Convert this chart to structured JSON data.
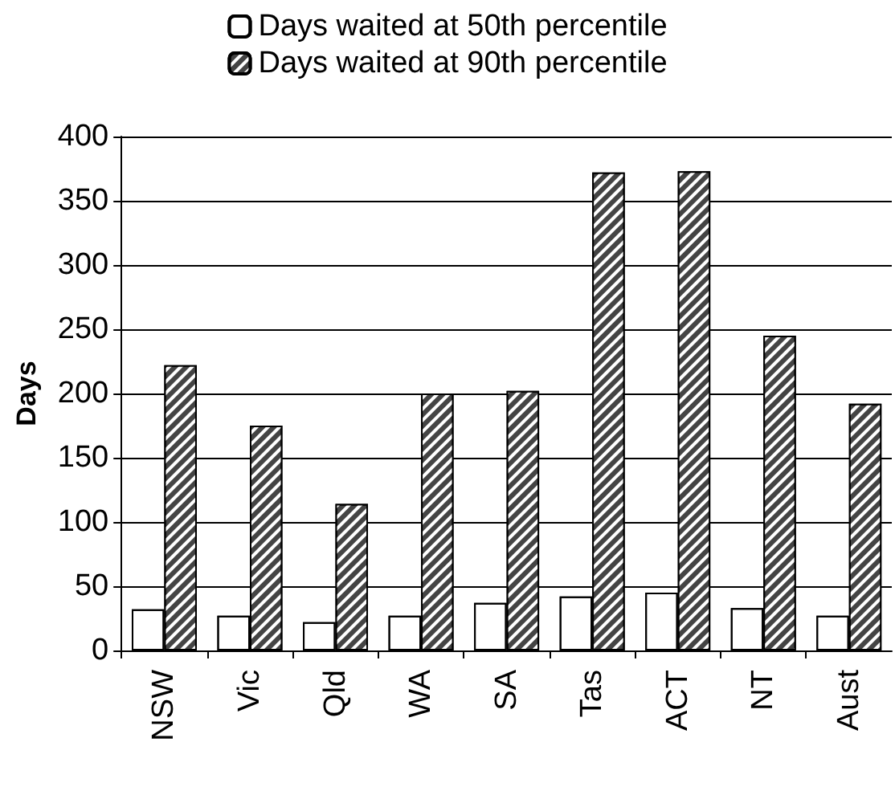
{
  "chart_data": {
    "type": "bar",
    "ylabel": "Days",
    "categories": [
      "NSW",
      "Vic",
      "Qld",
      "WA",
      "SA",
      "Tas",
      "ACT",
      "NT",
      "Aust"
    ],
    "series": [
      {
        "name": "Days waited at 50th percentile",
        "color": "#ffffff",
        "values": [
          32,
          27,
          22,
          27,
          37,
          42,
          45,
          33,
          27
        ]
      },
      {
        "name": "Days waited at 90th percentile",
        "color": "#444444",
        "values": [
          222,
          175,
          114,
          200,
          202,
          372,
          373,
          245,
          192
        ]
      }
    ],
    "ylim": [
      0,
      400
    ],
    "yticks": [
      0,
      50,
      100,
      150,
      200,
      250,
      300,
      350,
      400
    ],
    "grid": "y",
    "legend": "top"
  }
}
